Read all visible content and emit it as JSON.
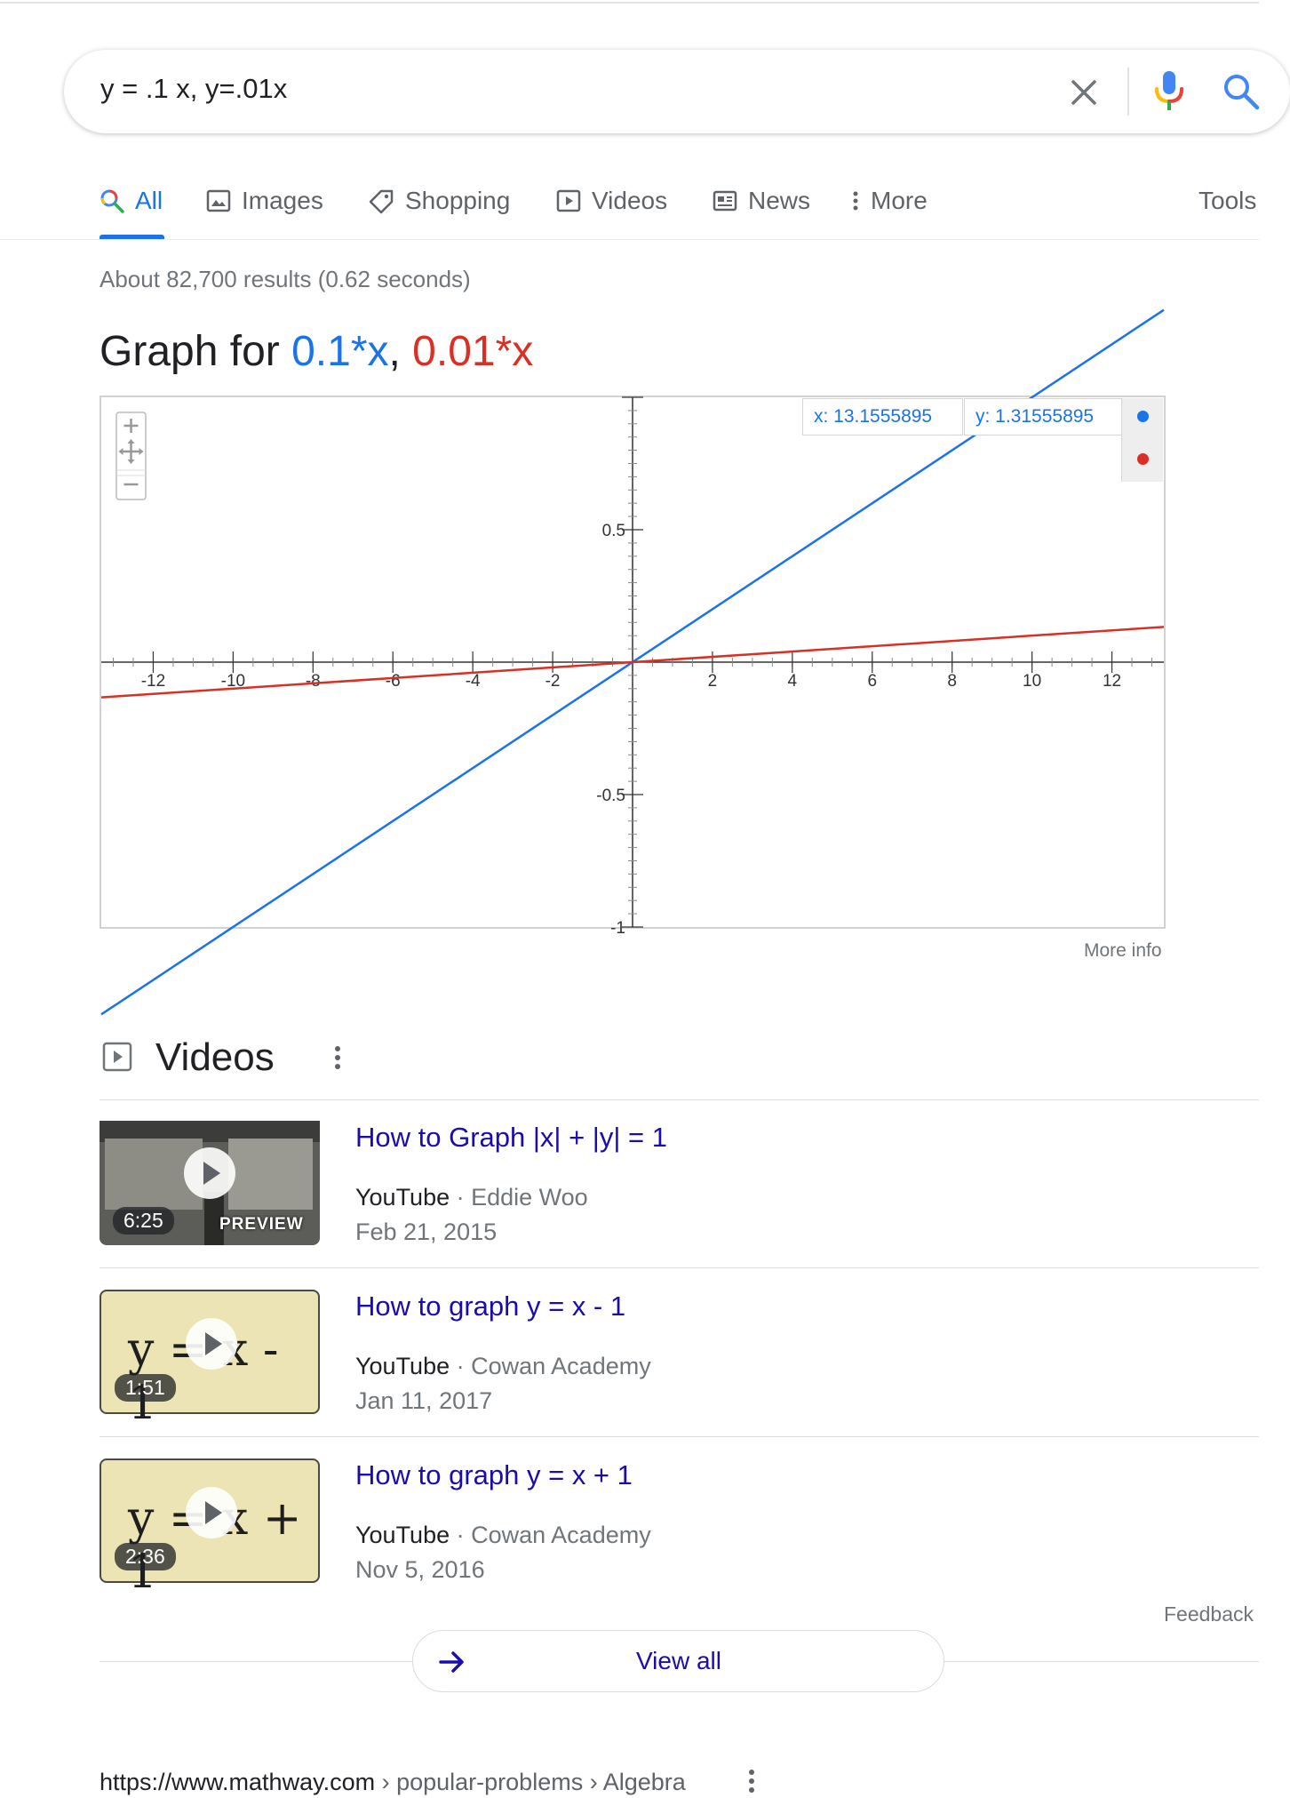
{
  "search": {
    "query": "y = .1 x, y=.01x"
  },
  "tabs": [
    {
      "label": "All",
      "icon": "search-icon",
      "active": true
    },
    {
      "label": "Images",
      "icon": "image-icon"
    },
    {
      "label": "Shopping",
      "icon": "tag-icon"
    },
    {
      "label": "Videos",
      "icon": "play-box-icon"
    },
    {
      "label": "News",
      "icon": "newspaper-icon"
    },
    {
      "label": "More",
      "icon": "vertical-dots-icon"
    }
  ],
  "tools_label": "Tools",
  "result_stats": "About 82,700 results (0.62 seconds)",
  "graph": {
    "title_prefix": "Graph for ",
    "func1": "0.1*x",
    "sep": ", ",
    "func2": "0.01*x",
    "coord_x": "x: 13.1555895",
    "coord_y": "y: 1.31555895",
    "more_info": "More info",
    "colors": {
      "func1": "#1a73e8",
      "func2": "#d93025"
    }
  },
  "chart_data": {
    "type": "line",
    "title": "Graph for 0.1*x, 0.01*x",
    "xlim": [
      -13.3,
      13.3
    ],
    "ylim": [
      -1,
      1
    ],
    "x_ticks": [
      -12,
      -10,
      -8,
      -6,
      -4,
      -2,
      2,
      4,
      6,
      8,
      10,
      12
    ],
    "y_ticks": [
      -0.5,
      0.5,
      -1
    ],
    "series": [
      {
        "name": "0.1*x",
        "color": "#1a73e8",
        "points": [
          [
            -13.3,
            -1.33
          ],
          [
            13.3,
            1.33
          ]
        ]
      },
      {
        "name": "0.01*x",
        "color": "#d93025",
        "points": [
          [
            -13.3,
            -0.133
          ],
          [
            13.3,
            0.133
          ]
        ]
      }
    ],
    "grid": false
  },
  "videos": {
    "heading": "Videos",
    "items": [
      {
        "title": "How to Graph |x| + |y| = 1",
        "source": "YouTube",
        "channel": "Eddie Woo",
        "date": "Feb 21, 2015",
        "duration": "6:25",
        "preview": "PREVIEW"
      },
      {
        "title": "How to graph y = x - 1",
        "source": "YouTube",
        "channel": "Cowan Academy",
        "date": "Jan 11, 2017",
        "duration": "1:51",
        "thumb_text": "y = x - 1"
      },
      {
        "title": "How to graph y = x + 1",
        "source": "YouTube",
        "channel": "Cowan Academy",
        "date": "Nov 5, 2016",
        "duration": "2:36",
        "thumb_text": "y = x + 1"
      }
    ],
    "feedback": "Feedback",
    "view_all": "View all"
  },
  "next_result": {
    "url": "https://www.mathway.com",
    "crumbs": " › popular-problems › Algebra"
  }
}
